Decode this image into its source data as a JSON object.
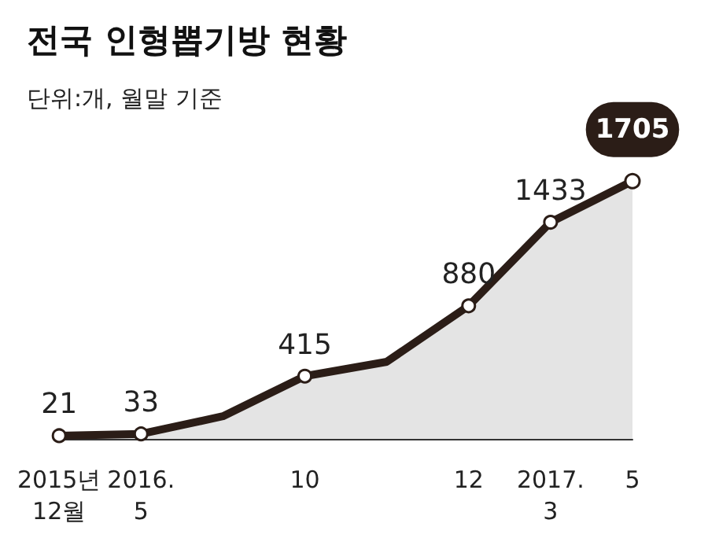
{
  "chart_data": {
    "type": "area",
    "title": "전국 인형뽑기방 현황",
    "subtitle": "단위:개, 월말 기준",
    "categories": [
      "2015년\n12월",
      "2016.\n5",
      null,
      "10",
      null,
      "12",
      "2017.\n3",
      "5"
    ],
    "series": [
      {
        "color": "#2b1d17",
        "values": [
          21,
          33,
          150,
          415,
          510,
          880,
          1433,
          1705
        ],
        "value_labels": [
          "21",
          "33",
          null,
          "415",
          null,
          "880",
          "1433",
          "1705"
        ]
      }
    ],
    "marker": "circle"
  }
}
